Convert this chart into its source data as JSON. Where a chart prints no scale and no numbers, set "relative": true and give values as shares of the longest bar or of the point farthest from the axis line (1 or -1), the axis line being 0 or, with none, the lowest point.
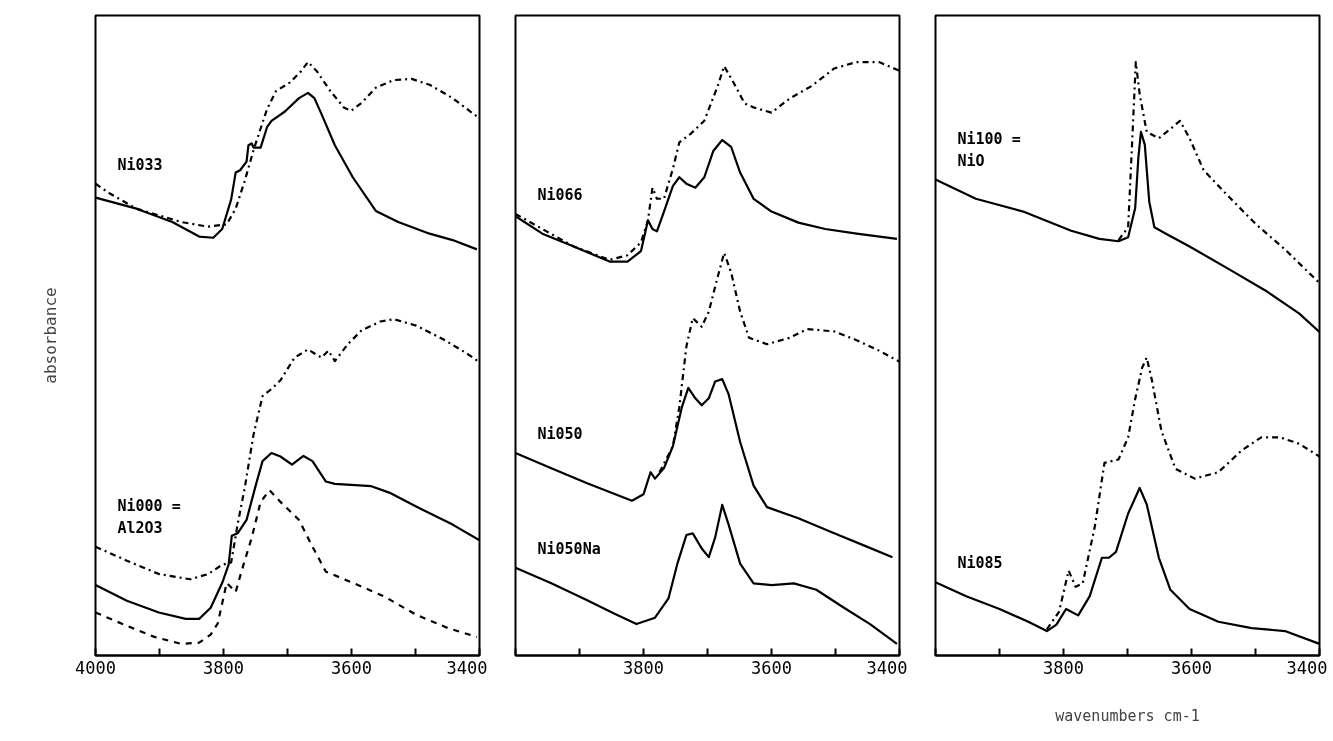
{
  "chart_data": [
    {
      "type": "line",
      "relative": true,
      "tick_labels": "x",
      "ylabel": "absorbance",
      "xlim": [
        4000,
        3400
      ],
      "xticks": [
        4000,
        {
          "value": 3900,
          "label": null
        },
        3800,
        {
          "value": 3700,
          "label": null
        },
        3600,
        {
          "value": 3500,
          "label": null
        },
        3400
      ],
      "series": [
        {
          "color": "#000000",
          "line_style": "solid",
          "x": [
            4000,
            3936,
            3880,
            3838,
            3816,
            3802,
            3788,
            3781,
            3774,
            3764,
            3761,
            3756,
            3753,
            3742,
            3732,
            3725,
            3704,
            3682,
            3668,
            3658,
            3647,
            3626,
            3598,
            3562,
            3527,
            3478,
            3442,
            3404
          ],
          "values": [
            0.767,
            0.748,
            0.725,
            0.7,
            0.698,
            0.713,
            0.764,
            0.81,
            0.814,
            0.829,
            0.857,
            0.86,
            0.853,
            0.853,
            0.888,
            0.899,
            0.915,
            0.938,
            0.947,
            0.938,
            0.911,
            0.857,
            0.802,
            0.744,
            0.725,
            0.705,
            0.694,
            0.678
          ]
        },
        {
          "name": "Ni033",
          "color": "#000000",
          "line_style": "dashdot",
          "x": [
            4000,
            3979,
            3936,
            3866,
            3824,
            3795,
            3781,
            3767,
            3753,
            3732,
            3718,
            3696,
            3679,
            3668,
            3654,
            3633,
            3612,
            3601,
            3584,
            3562,
            3534,
            3506,
            3478,
            3442,
            3400
          ],
          "values": [
            0.791,
            0.775,
            0.748,
            0.725,
            0.717,
            0.721,
            0.748,
            0.795,
            0.849,
            0.919,
            0.95,
            0.965,
            0.984,
            1.0,
            0.984,
            0.95,
            0.922,
            0.916,
            0.93,
            0.956,
            0.969,
            0.971,
            0.961,
            0.938,
            0.903
          ]
        },
        {
          "name": "Ni000 =\nAl2O3",
          "color": "#000000",
          "line_style": "dashdot",
          "x": [
            4000,
            3951,
            3901,
            3852,
            3824,
            3802,
            3788,
            3778,
            3767,
            3753,
            3739,
            3725,
            3711,
            3689,
            3668,
            3647,
            3636,
            3626,
            3605,
            3584,
            3555,
            3534,
            3499,
            3456,
            3421,
            3400
          ],
          "values": [
            0.167,
            0.143,
            0.12,
            0.111,
            0.12,
            0.136,
            0.14,
            0.205,
            0.267,
            0.36,
            0.426,
            0.438,
            0.453,
            0.492,
            0.506,
            0.492,
            0.504,
            0.486,
            0.516,
            0.539,
            0.554,
            0.558,
            0.547,
            0.523,
            0.5,
            0.484
          ]
        },
        {
          "color": "#000000",
          "line_style": "solid",
          "x": [
            4000,
            3951,
            3901,
            3859,
            3838,
            3820,
            3802,
            3792,
            3787,
            3778,
            3764,
            3749,
            3739,
            3725,
            3711,
            3693,
            3675,
            3661,
            3640,
            3626,
            3569,
            3541,
            3499,
            3442,
            3400
          ],
          "values": [
            0.101,
            0.074,
            0.054,
            0.043,
            0.043,
            0.062,
            0.105,
            0.136,
            0.186,
            0.19,
            0.213,
            0.275,
            0.314,
            0.328,
            0.322,
            0.308,
            0.323,
            0.314,
            0.279,
            0.275,
            0.271,
            0.26,
            0.236,
            0.205,
            0.178
          ]
        },
        {
          "color": "#000000",
          "line_style": "dashed",
          "x": [
            4000,
            3951,
            3908,
            3866,
            3838,
            3820,
            3809,
            3795,
            3781,
            3771,
            3756,
            3742,
            3728,
            3711,
            3682,
            3661,
            3640,
            3598,
            3548,
            3499,
            3449,
            3404
          ],
          "values": [
            0.054,
            0.031,
            0.012,
            0.0,
            0.002,
            0.016,
            0.035,
            0.105,
            0.089,
            0.128,
            0.182,
            0.244,
            0.264,
            0.244,
            0.213,
            0.167,
            0.124,
            0.105,
            0.081,
            0.05,
            0.027,
            0.012
          ]
        }
      ]
    },
    {
      "type": "line",
      "relative": true,
      "tick_labels": "x",
      "xlim": [
        4000,
        3400
      ],
      "xticks": [
        {
          "value": 4000,
          "label": null
        },
        {
          "value": 3900,
          "label": null
        },
        3800,
        {
          "value": 3700,
          "label": null
        },
        3600,
        {
          "value": 3500,
          "label": null
        },
        3400
      ],
      "series": [
        {
          "name": "Ni066",
          "color": "#000000",
          "line_style": "dashdot",
          "x": [
            4000,
            3958,
            3909,
            3853,
            3825,
            3804,
            3793,
            3786,
            3779,
            3768,
            3754,
            3744,
            3726,
            3705,
            3684,
            3674,
            3660,
            3642,
            3628,
            3600,
            3572,
            3537,
            3502,
            3467,
            3432,
            3400
          ],
          "values": [
            0.739,
            0.713,
            0.683,
            0.66,
            0.668,
            0.69,
            0.728,
            0.784,
            0.765,
            0.765,
            0.817,
            0.862,
            0.877,
            0.899,
            0.959,
            0.993,
            0.966,
            0.929,
            0.922,
            0.913,
            0.937,
            0.959,
            0.989,
            1.0,
            1.0,
            0.985
          ]
        },
        {
          "color": "#000000",
          "line_style": "solid",
          "x": [
            4000,
            3958,
            3909,
            3853,
            3825,
            3804,
            3793,
            3786,
            3779,
            3768,
            3754,
            3744,
            3733,
            3719,
            3705,
            3691,
            3677,
            3663,
            3649,
            3628,
            3600,
            3558,
            3516,
            3467,
            3404
          ],
          "values": [
            0.735,
            0.705,
            0.683,
            0.657,
            0.657,
            0.675,
            0.728,
            0.713,
            0.709,
            0.743,
            0.787,
            0.802,
            0.791,
            0.784,
            0.802,
            0.847,
            0.866,
            0.854,
            0.81,
            0.765,
            0.743,
            0.724,
            0.713,
            0.705,
            0.696
          ]
        },
        {
          "color": "#000000",
          "line_style": "dashdot",
          "x": [
            3775,
            3754,
            3744,
            3733,
            3723,
            3709,
            3698,
            3684,
            3674,
            3663,
            3649,
            3635,
            3607,
            3572,
            3544,
            3502,
            3467,
            3432,
            3400
          ],
          "values": [
            0.295,
            0.34,
            0.407,
            0.511,
            0.56,
            0.545,
            0.571,
            0.631,
            0.672,
            0.638,
            0.571,
            0.526,
            0.515,
            0.526,
            0.541,
            0.537,
            0.522,
            0.504,
            0.485
          ]
        },
        {
          "name": "Ni050",
          "color": "#000000",
          "line_style": "solid",
          "x": [
            4000,
            3944,
            3888,
            3853,
            3818,
            3800,
            3789,
            3782,
            3768,
            3754,
            3740,
            3730,
            3719,
            3709,
            3698,
            3688,
            3677,
            3667,
            3649,
            3628,
            3607,
            3558,
            3502,
            3453,
            3411
          ],
          "values": [
            0.328,
            0.302,
            0.276,
            0.261,
            0.246,
            0.257,
            0.295,
            0.284,
            0.302,
            0.34,
            0.407,
            0.44,
            0.422,
            0.41,
            0.422,
            0.451,
            0.455,
            0.429,
            0.347,
            0.272,
            0.235,
            0.216,
            0.19,
            0.168,
            0.149
          ]
        },
        {
          "name": "Ni050Na",
          "color": "#000000",
          "line_style": "solid",
          "x": [
            4000,
            3944,
            3888,
            3846,
            3811,
            3782,
            3761,
            3747,
            3733,
            3723,
            3709,
            3698,
            3688,
            3677,
            3667,
            3649,
            3628,
            3600,
            3565,
            3530,
            3488,
            3446,
            3404
          ],
          "values": [
            0.131,
            0.104,
            0.075,
            0.052,
            0.034,
            0.045,
            0.078,
            0.138,
            0.187,
            0.19,
            0.164,
            0.149,
            0.183,
            0.239,
            0.205,
            0.138,
            0.104,
            0.101,
            0.104,
            0.093,
            0.063,
            0.034,
            0.0
          ]
        }
      ]
    },
    {
      "type": "line",
      "relative": true,
      "tick_labels": "x",
      "xlabel": "wavenumbers cm-1",
      "xlim": [
        4000,
        3400
      ],
      "xticks": [
        {
          "value": 4000,
          "label": null
        },
        {
          "value": 3900,
          "label": null
        },
        3800,
        {
          "value": 3700,
          "label": null
        },
        3600,
        {
          "value": 3500,
          "label": null
        },
        3400
      ],
      "series": [
        {
          "name": "Ni100 =\nNiO",
          "color": "#000000",
          "line_style": "solid",
          "x": [
            4000,
            3937,
            3863,
            3788,
            3744,
            3714,
            3699,
            3688,
            3683,
            3679,
            3673,
            3666,
            3658,
            3640,
            3603,
            3543,
            3484,
            3432,
            3400
          ],
          "values": [
            0.798,
            0.765,
            0.743,
            0.71,
            0.696,
            0.692,
            0.699,
            0.749,
            0.836,
            0.88,
            0.858,
            0.76,
            0.716,
            0.705,
            0.683,
            0.645,
            0.607,
            0.568,
            0.536
          ]
        },
        {
          "color": "#000000",
          "line_style": "dashdot",
          "x": [
            3714,
            3699,
            3692,
            3687,
            3681,
            3670,
            3651,
            3633,
            3618,
            3603,
            3581,
            3543,
            3499,
            3454,
            3400
          ],
          "values": [
            0.694,
            0.716,
            0.88,
            1.0,
            0.945,
            0.88,
            0.869,
            0.885,
            0.899,
            0.869,
            0.814,
            0.77,
            0.721,
            0.678,
            0.62
          ]
        },
        {
          "name": "Ni085",
          "color": "#000000",
          "line_style": "solid",
          "x": [
            4000,
            3952,
            3900,
            3855,
            3826,
            3811,
            3796,
            3777,
            3759,
            3740,
            3729,
            3718,
            3699,
            3681,
            3670,
            3651,
            3633,
            3603,
            3558,
            3506,
            3454,
            3400
          ],
          "values": [
            0.106,
            0.082,
            0.06,
            0.038,
            0.022,
            0.033,
            0.06,
            0.049,
            0.082,
            0.148,
            0.148,
            0.158,
            0.224,
            0.268,
            0.24,
            0.148,
            0.093,
            0.06,
            0.038,
            0.027,
            0.022,
            0.0
          ]
        },
        {
          "color": "#000000",
          "line_style": "dashdot",
          "x": [
            3826,
            3807,
            3792,
            3781,
            3770,
            3751,
            3736,
            3714,
            3699,
            3688,
            3677,
            3670,
            3662,
            3647,
            3625,
            3595,
            3558,
            3521,
            3491,
            3462,
            3432,
            3400
          ],
          "values": [
            0.025,
            0.055,
            0.126,
            0.098,
            0.104,
            0.202,
            0.311,
            0.317,
            0.355,
            0.421,
            0.475,
            0.492,
            0.454,
            0.366,
            0.301,
            0.284,
            0.295,
            0.333,
            0.355,
            0.355,
            0.344,
            0.322
          ]
        }
      ]
    }
  ]
}
